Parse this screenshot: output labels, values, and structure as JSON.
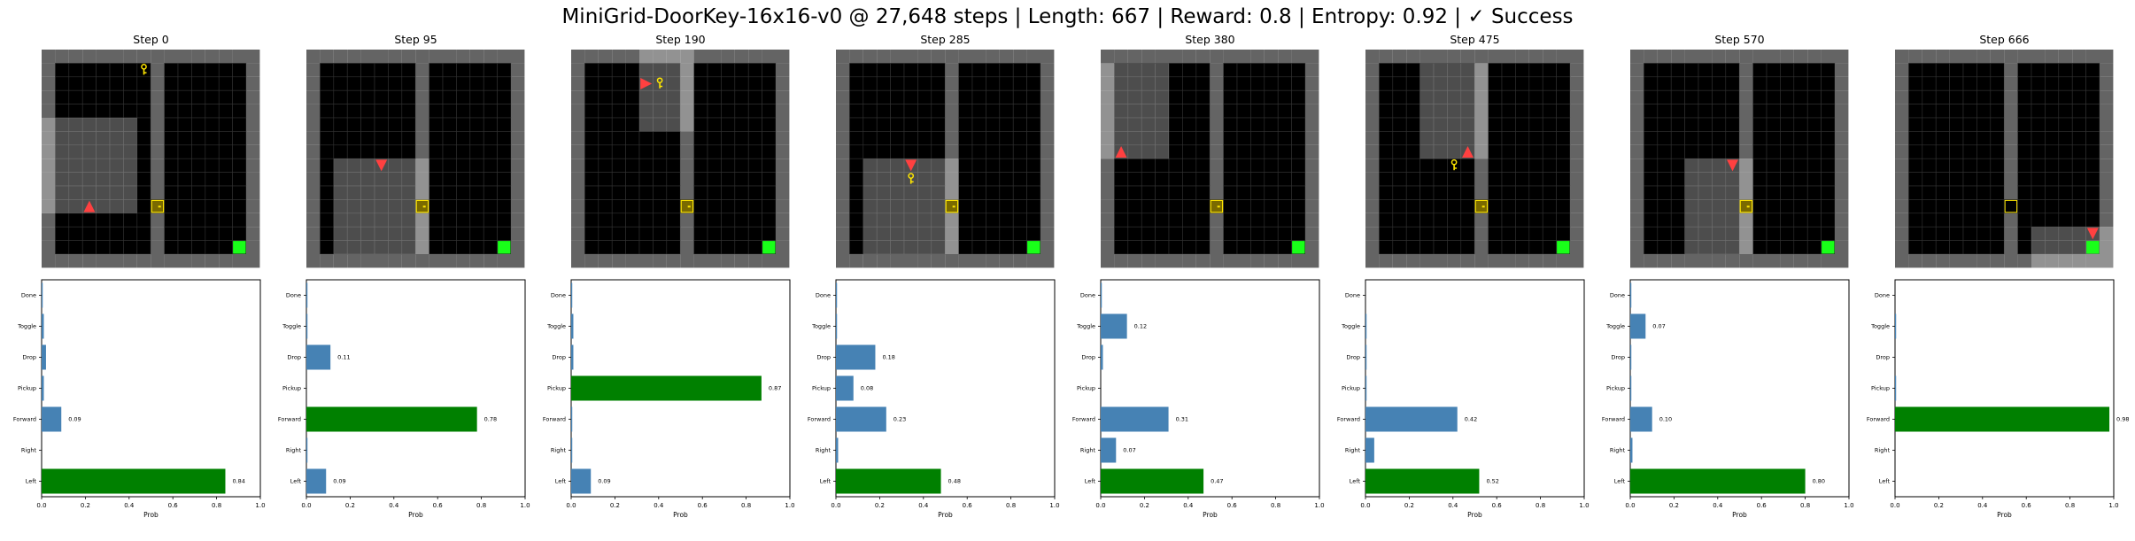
{
  "title": "MiniGrid-DoorKey-16x16-v0 @ 27,648 steps | Length: 667 | Reward: 0.8 | Entropy: 0.92 | ✓ Success",
  "colors": {
    "wall": "#646464",
    "floor": "#000000",
    "grid_line": "#333333",
    "agent": "#ff4040",
    "key": "#ffe600",
    "door": "#ffe600",
    "goal": "#19ff19",
    "bar_default": "#4682b4",
    "bar_selected": "#008000"
  },
  "chart_data": {
    "type": "bar",
    "orientation": "horizontal",
    "categories": [
      "Left",
      "Right",
      "Forward",
      "Pickup",
      "Drop",
      "Toggle",
      "Done"
    ],
    "xlabel": "Prob",
    "xlim": [
      0,
      1
    ],
    "xticks": [
      "0.0",
      "0.2",
      "0.4",
      "0.6",
      "0.8",
      "1.0"
    ],
    "panels": [
      {
        "step_label": "Step 0",
        "selected": "Left",
        "values": [
          0.84,
          0.0,
          0.09,
          0.01,
          0.02,
          0.01,
          0.005
        ],
        "labels": [
          "0.84",
          "",
          "0.09",
          "",
          "",
          "",
          ""
        ]
      },
      {
        "step_label": "Step 95",
        "selected": "Forward",
        "values": [
          0.09,
          0.005,
          0.78,
          0.0,
          0.11,
          0.005,
          0.005
        ],
        "labels": [
          "0.09",
          "",
          "0.78",
          "",
          "0.11",
          "",
          ""
        ]
      },
      {
        "step_label": "Step 190",
        "selected": "Pickup",
        "values": [
          0.09,
          0.005,
          0.005,
          0.87,
          0.01,
          0.01,
          0.005
        ],
        "labels": [
          "0.09",
          "",
          "",
          "0.87",
          "",
          "",
          ""
        ]
      },
      {
        "step_label": "Step 285",
        "selected": "Left",
        "values": [
          0.48,
          0.01,
          0.23,
          0.08,
          0.18,
          0.005,
          0.005
        ],
        "labels": [
          "0.48",
          "",
          "0.23",
          "0.08",
          "0.18",
          "",
          ""
        ]
      },
      {
        "step_label": "Step 380",
        "selected": "Left",
        "values": [
          0.47,
          0.07,
          0.31,
          0.0,
          0.01,
          0.12,
          0.005
        ],
        "labels": [
          "0.47",
          "0.07",
          "0.31",
          "",
          "",
          "0.12",
          ""
        ]
      },
      {
        "step_label": "Step 475",
        "selected": "Left",
        "values": [
          0.52,
          0.04,
          0.42,
          0.005,
          0.005,
          0.005,
          0.0
        ],
        "labels": [
          "0.52",
          "",
          "0.42",
          "",
          "",
          "",
          ""
        ]
      },
      {
        "step_label": "Step 570",
        "selected": "Left",
        "values": [
          0.8,
          0.01,
          0.1,
          0.005,
          0.005,
          0.07,
          0.005
        ],
        "labels": [
          "0.80",
          "",
          "0.10",
          "",
          "",
          "0.07",
          ""
        ]
      },
      {
        "step_label": "Step 666",
        "selected": "Forward",
        "values": [
          0.0,
          0.0,
          0.98,
          0.005,
          0.0,
          0.005,
          0.0
        ],
        "labels": [
          "",
          "",
          "0.98",
          "",
          "",
          "",
          ""
        ]
      }
    ]
  },
  "env_frames": [
    {
      "agent": [
        3,
        11
      ],
      "agent_dir": "up",
      "key": [
        7,
        1
      ],
      "door": [
        8,
        11
      ],
      "door_open": false,
      "goal": [
        14,
        14
      ],
      "view": [
        0,
        5,
        7,
        7
      ]
    },
    {
      "agent": [
        5,
        8
      ],
      "agent_dir": "down",
      "key": null,
      "door": [
        8,
        11
      ],
      "door_open": false,
      "goal": [
        14,
        14
      ],
      "view": [
        2,
        8,
        7,
        7
      ]
    },
    {
      "agent": [
        5,
        2
      ],
      "agent_dir": "right",
      "key": [
        6,
        2
      ],
      "door": [
        8,
        11
      ],
      "door_open": false,
      "goal": [
        14,
        14
      ],
      "view": [
        5,
        0,
        4,
        6
      ]
    },
    {
      "agent": [
        5,
        8
      ],
      "agent_dir": "down",
      "key": [
        5,
        9
      ],
      "door": [
        8,
        11
      ],
      "door_open": false,
      "goal": [
        14,
        14
      ],
      "view": [
        2,
        8,
        7,
        7
      ]
    },
    {
      "agent": [
        1,
        7
      ],
      "agent_dir": "up",
      "key": null,
      "door": [
        8,
        11
      ],
      "door_open": false,
      "goal": [
        14,
        14
      ],
      "view": [
        0,
        1,
        5,
        7
      ]
    },
    {
      "agent": [
        7,
        7
      ],
      "agent_dir": "up",
      "key": [
        6,
        8
      ],
      "door": [
        8,
        11
      ],
      "door_open": false,
      "goal": [
        14,
        14
      ],
      "view": [
        4,
        1,
        5,
        7
      ]
    },
    {
      "agent": [
        7,
        8
      ],
      "agent_dir": "down",
      "key": null,
      "door": [
        8,
        11
      ],
      "door_open": false,
      "goal": [
        14,
        14
      ],
      "view": [
        4,
        8,
        5,
        7
      ]
    },
    {
      "agent": [
        14,
        13
      ],
      "agent_dir": "down",
      "key": null,
      "door": [
        8,
        11
      ],
      "door_open": true,
      "goal": [
        14,
        14
      ],
      "view": [
        10,
        13,
        7,
        7
      ]
    }
  ]
}
